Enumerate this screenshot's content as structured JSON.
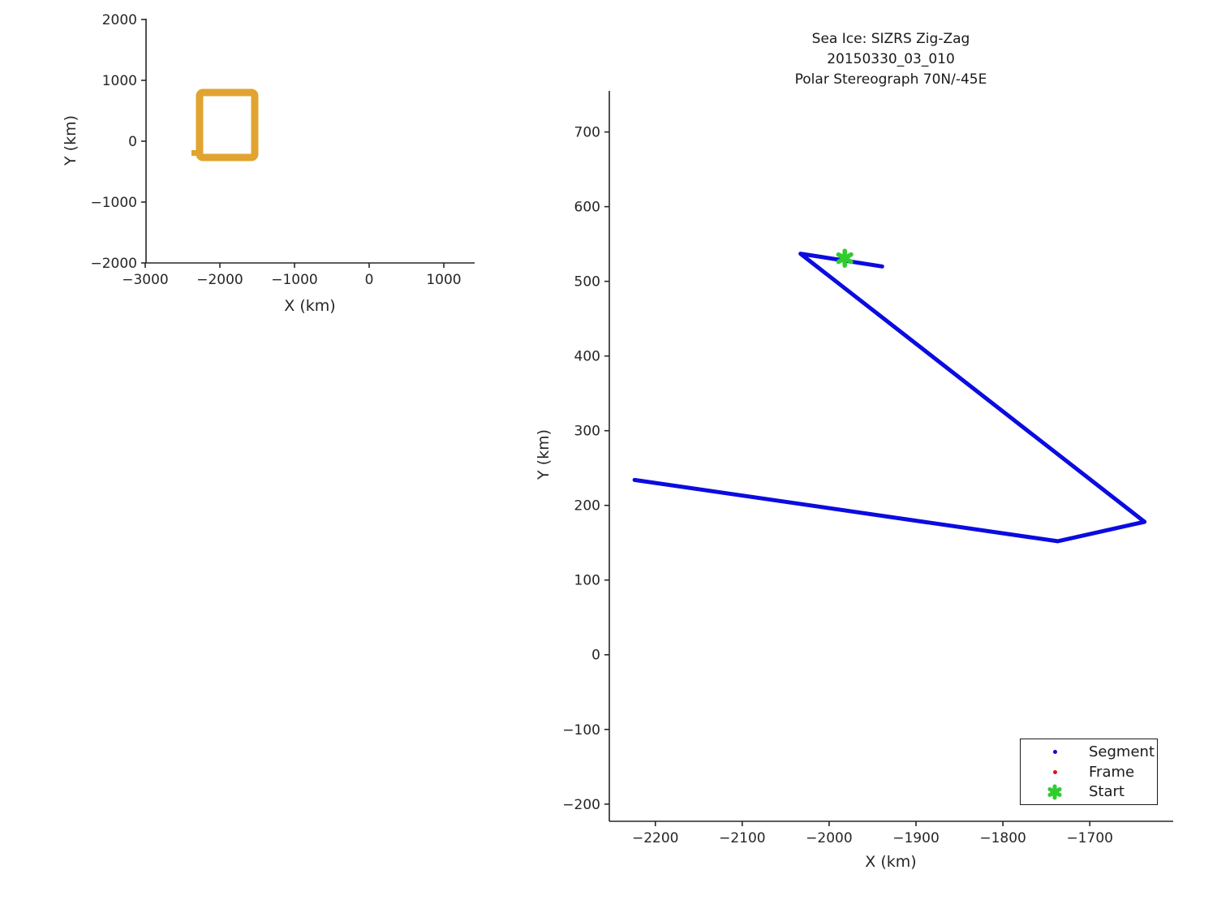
{
  "colors": {
    "segment_blue": "#0b0be0",
    "frame_red": "#e01414",
    "start_green": "#2fcc2f",
    "track_orange": "#e1a430",
    "axis": "#262626"
  },
  "legend": {
    "position": "lower right",
    "items": [
      {
        "label": "Segment",
        "marker": "dot",
        "color_key": "segment_blue"
      },
      {
        "label": "Frame",
        "marker": "dot",
        "color_key": "frame_red"
      },
      {
        "label": "Start",
        "marker": "asterisk",
        "color_key": "start_green"
      }
    ]
  },
  "chart_data": [
    {
      "type": "line",
      "name": "overview-map",
      "xlabel": "X (km)",
      "ylabel": "Y (km)",
      "xlim": [
        -2989,
        1413
      ],
      "ylim": [
        -2000,
        2013
      ],
      "grid": false,
      "xticks": [
        {
          "v": -3000,
          "label": "−3000"
        },
        {
          "v": -2000,
          "label": "−2000"
        },
        {
          "v": -1000,
          "label": "−1000"
        },
        {
          "v": 0,
          "label": "0"
        },
        {
          "v": 1000,
          "label": "1000"
        }
      ],
      "yticks": [
        {
          "v": 2000,
          "label": "2000"
        },
        {
          "v": 1000,
          "label": "1000"
        },
        {
          "v": 0,
          "label": "0"
        },
        {
          "v": -1000,
          "label": "−1000"
        },
        {
          "v": -2000,
          "label": "−2000"
        }
      ],
      "series": [
        {
          "name": "flight-region-outline",
          "shape": "rect-outline",
          "color_key": "track_orange",
          "linewidth": 9,
          "x": [
            -2272,
            -1533
          ],
          "y": [
            -267,
            800
          ],
          "start_nub_corner": "bottom-left"
        }
      ]
    },
    {
      "type": "line",
      "name": "zigzag-detail",
      "title_lines": [
        "Sea Ice: SIZRS Zig-Zag",
        "20150330_03_010",
        "Polar Stereograph 70N/-45E"
      ],
      "xlabel": "X (km)",
      "ylabel": "Y (km)",
      "xlim": [
        -2253,
        -1604
      ],
      "ylim": [
        -223,
        755
      ],
      "grid": false,
      "legend_position": "lower right",
      "xticks": [
        {
          "v": -2200,
          "label": "−2200"
        },
        {
          "v": -2100,
          "label": "−2100"
        },
        {
          "v": -2000,
          "label": "−2000"
        },
        {
          "v": -1900,
          "label": "−1900"
        },
        {
          "v": -1800,
          "label": "−1800"
        },
        {
          "v": -1700,
          "label": "−1700"
        }
      ],
      "yticks": [
        {
          "v": 700,
          "label": "700"
        },
        {
          "v": 600,
          "label": "600"
        },
        {
          "v": 500,
          "label": "500"
        },
        {
          "v": 400,
          "label": "400"
        },
        {
          "v": 300,
          "label": "300"
        },
        {
          "v": 200,
          "label": "200"
        },
        {
          "v": 100,
          "label": "100"
        },
        {
          "v": 0,
          "label": "0"
        },
        {
          "v": -100,
          "label": "−100"
        },
        {
          "v": -200,
          "label": "−200"
        }
      ],
      "series": [
        {
          "name": "segment-path",
          "legend": "Segment",
          "shape": "polyline",
          "color_key": "segment_blue",
          "linewidth": 5,
          "points": [
            [
              -1939,
              520
            ],
            [
              -2033,
              537
            ],
            [
              -1637,
              178
            ],
            [
              -1737,
              152
            ],
            [
              -2224,
              234
            ]
          ]
        },
        {
          "name": "start-marker",
          "legend": "Start",
          "shape": "marker",
          "marker": "asterisk",
          "color_key": "start_green",
          "point": [
            -1982,
            531
          ],
          "size": 18
        }
      ]
    }
  ]
}
